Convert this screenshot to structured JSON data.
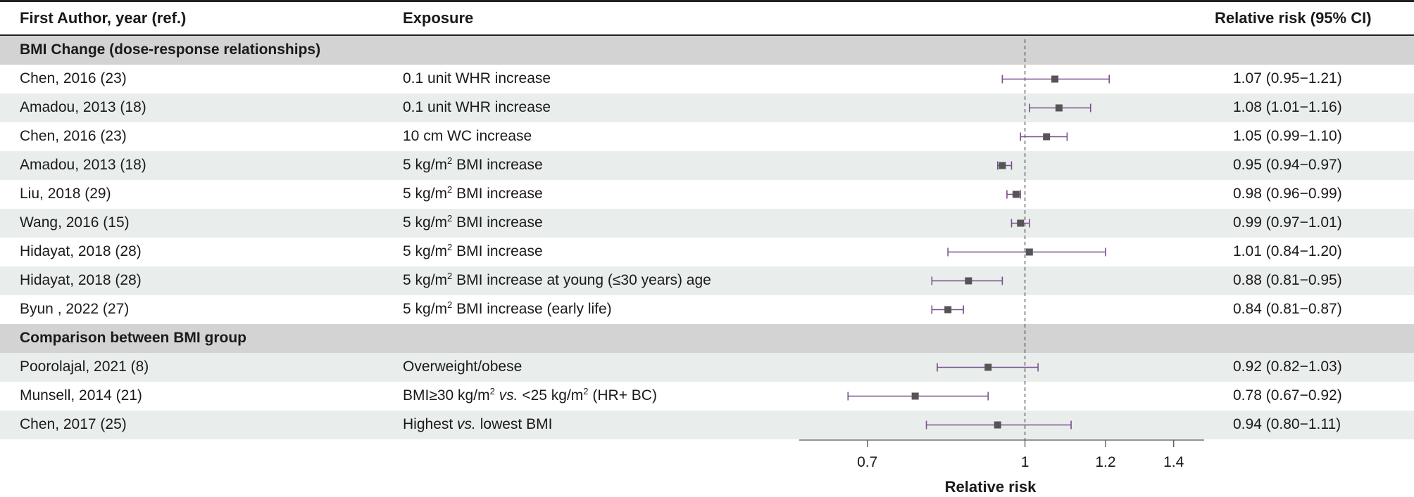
{
  "header": {
    "author": "First Author, year (ref.)",
    "exposure": "Exposure",
    "rr": "Relative risk (95% CI)"
  },
  "rows": [
    {
      "type": "section",
      "label": "BMI Change (dose-response relationships)"
    },
    {
      "type": "data",
      "author": "Chen, 2016 (23)",
      "exposure": "0.1 unit WHR increase",
      "rr_text": "1.07 (0.95−1.21)"
    },
    {
      "type": "data",
      "author": "Amadou, 2013 (18)",
      "exposure": "0.1 unit WHR increase",
      "rr_text": "1.08 (1.01−1.16)"
    },
    {
      "type": "data",
      "author": "Chen, 2016 (23)",
      "exposure": "10 cm WC increase",
      "rr_text": "1.05 (0.99−1.10)"
    },
    {
      "type": "data",
      "author": "Amadou, 2013 (18)",
      "exposure": "5 kg/m² BMI increase",
      "rr_text": "0.95 (0.94−0.97)"
    },
    {
      "type": "data",
      "author": "Liu, 2018 (29)",
      "exposure": "5 kg/m² BMI increase",
      "rr_text": "0.98 (0.96−0.99)"
    },
    {
      "type": "data",
      "author": "Wang, 2016 (15)",
      "exposure": "5 kg/m² BMI increase",
      "rr_text": "0.99 (0.97−1.01)"
    },
    {
      "type": "data",
      "author": "Hidayat, 2018 (28)",
      "exposure": "5 kg/m² BMI increase",
      "rr_text": "1.01 (0.84−1.20)"
    },
    {
      "type": "data",
      "author": "Hidayat, 2018 (28)",
      "exposure": "5 kg/m² BMI increase at young (≤30 years) age",
      "rr_text": "0.88 (0.81−0.95)"
    },
    {
      "type": "data",
      "author": "Byun , 2022 (27)",
      "exposure": "5 kg/m² BMI increase (early life)",
      "rr_text": "0.84 (0.81−0.87)"
    },
    {
      "type": "section",
      "label": "Comparison between BMI group"
    },
    {
      "type": "data",
      "author": "Poorolajal, 2021 (8)",
      "exposure": "Overweight/obese",
      "rr_text": "0.92 (0.82−1.03)"
    },
    {
      "type": "data",
      "author": "Munsell, 2014 (21)",
      "exposure": "BMI≥30 kg/m² vs. <25 kg/m² (HR+ BC)",
      "rr_text": "0.78 (0.67−0.92)"
    },
    {
      "type": "data",
      "author": "Chen, 2017 (25)",
      "exposure": "Highest vs. lowest BMI",
      "rr_text": "0.94 (0.80−1.11)"
    }
  ],
  "chart_data": {
    "type": "forest",
    "xlabel": "Relative risk",
    "xscale": "log",
    "xlim": [
      0.6,
      1.5
    ],
    "xticks": [
      0.7,
      1,
      1.2,
      1.4
    ],
    "reference_line": 1,
    "marker_color": "#555555",
    "ci_color": "#7a4f8f",
    "points": [
      {
        "label": "Chen, 2016 (23) – 0.1 unit WHR increase",
        "rr": 1.07,
        "lower": 0.95,
        "upper": 1.21
      },
      {
        "label": "Amadou, 2013 (18) – 0.1 unit WHR increase",
        "rr": 1.08,
        "lower": 1.01,
        "upper": 1.16
      },
      {
        "label": "Chen, 2016 (23) – 10 cm WC increase",
        "rr": 1.05,
        "lower": 0.99,
        "upper": 1.1
      },
      {
        "label": "Amadou, 2013 (18) – 5 kg/m² BMI increase",
        "rr": 0.95,
        "lower": 0.94,
        "upper": 0.97
      },
      {
        "label": "Liu, 2018 (29) – 5 kg/m² BMI increase",
        "rr": 0.98,
        "lower": 0.96,
        "upper": 0.99
      },
      {
        "label": "Wang, 2016 (15) – 5 kg/m² BMI increase",
        "rr": 0.99,
        "lower": 0.97,
        "upper": 1.01
      },
      {
        "label": "Hidayat, 2018 (28) – 5 kg/m² BMI increase",
        "rr": 1.01,
        "lower": 0.84,
        "upper": 1.2
      },
      {
        "label": "Hidayat, 2018 (28) – 5 kg/m² BMI increase at young (≤30 years) age",
        "rr": 0.88,
        "lower": 0.81,
        "upper": 0.95
      },
      {
        "label": "Byun , 2022 (27) – 5 kg/m² BMI increase (early life)",
        "rr": 0.84,
        "lower": 0.81,
        "upper": 0.87
      },
      {
        "label": "Poorolajal, 2021 (8) – Overweight/obese",
        "rr": 0.92,
        "lower": 0.82,
        "upper": 1.03
      },
      {
        "label": "Munsell, 2014 (21) – BMI≥30 kg/m² vs. <25 kg/m² (HR+ BC)",
        "rr": 0.78,
        "lower": 0.67,
        "upper": 0.92
      },
      {
        "label": "Chen, 2017 (25) – Highest vs. lowest BMI",
        "rr": 0.94,
        "lower": 0.8,
        "upper": 1.11
      }
    ]
  }
}
